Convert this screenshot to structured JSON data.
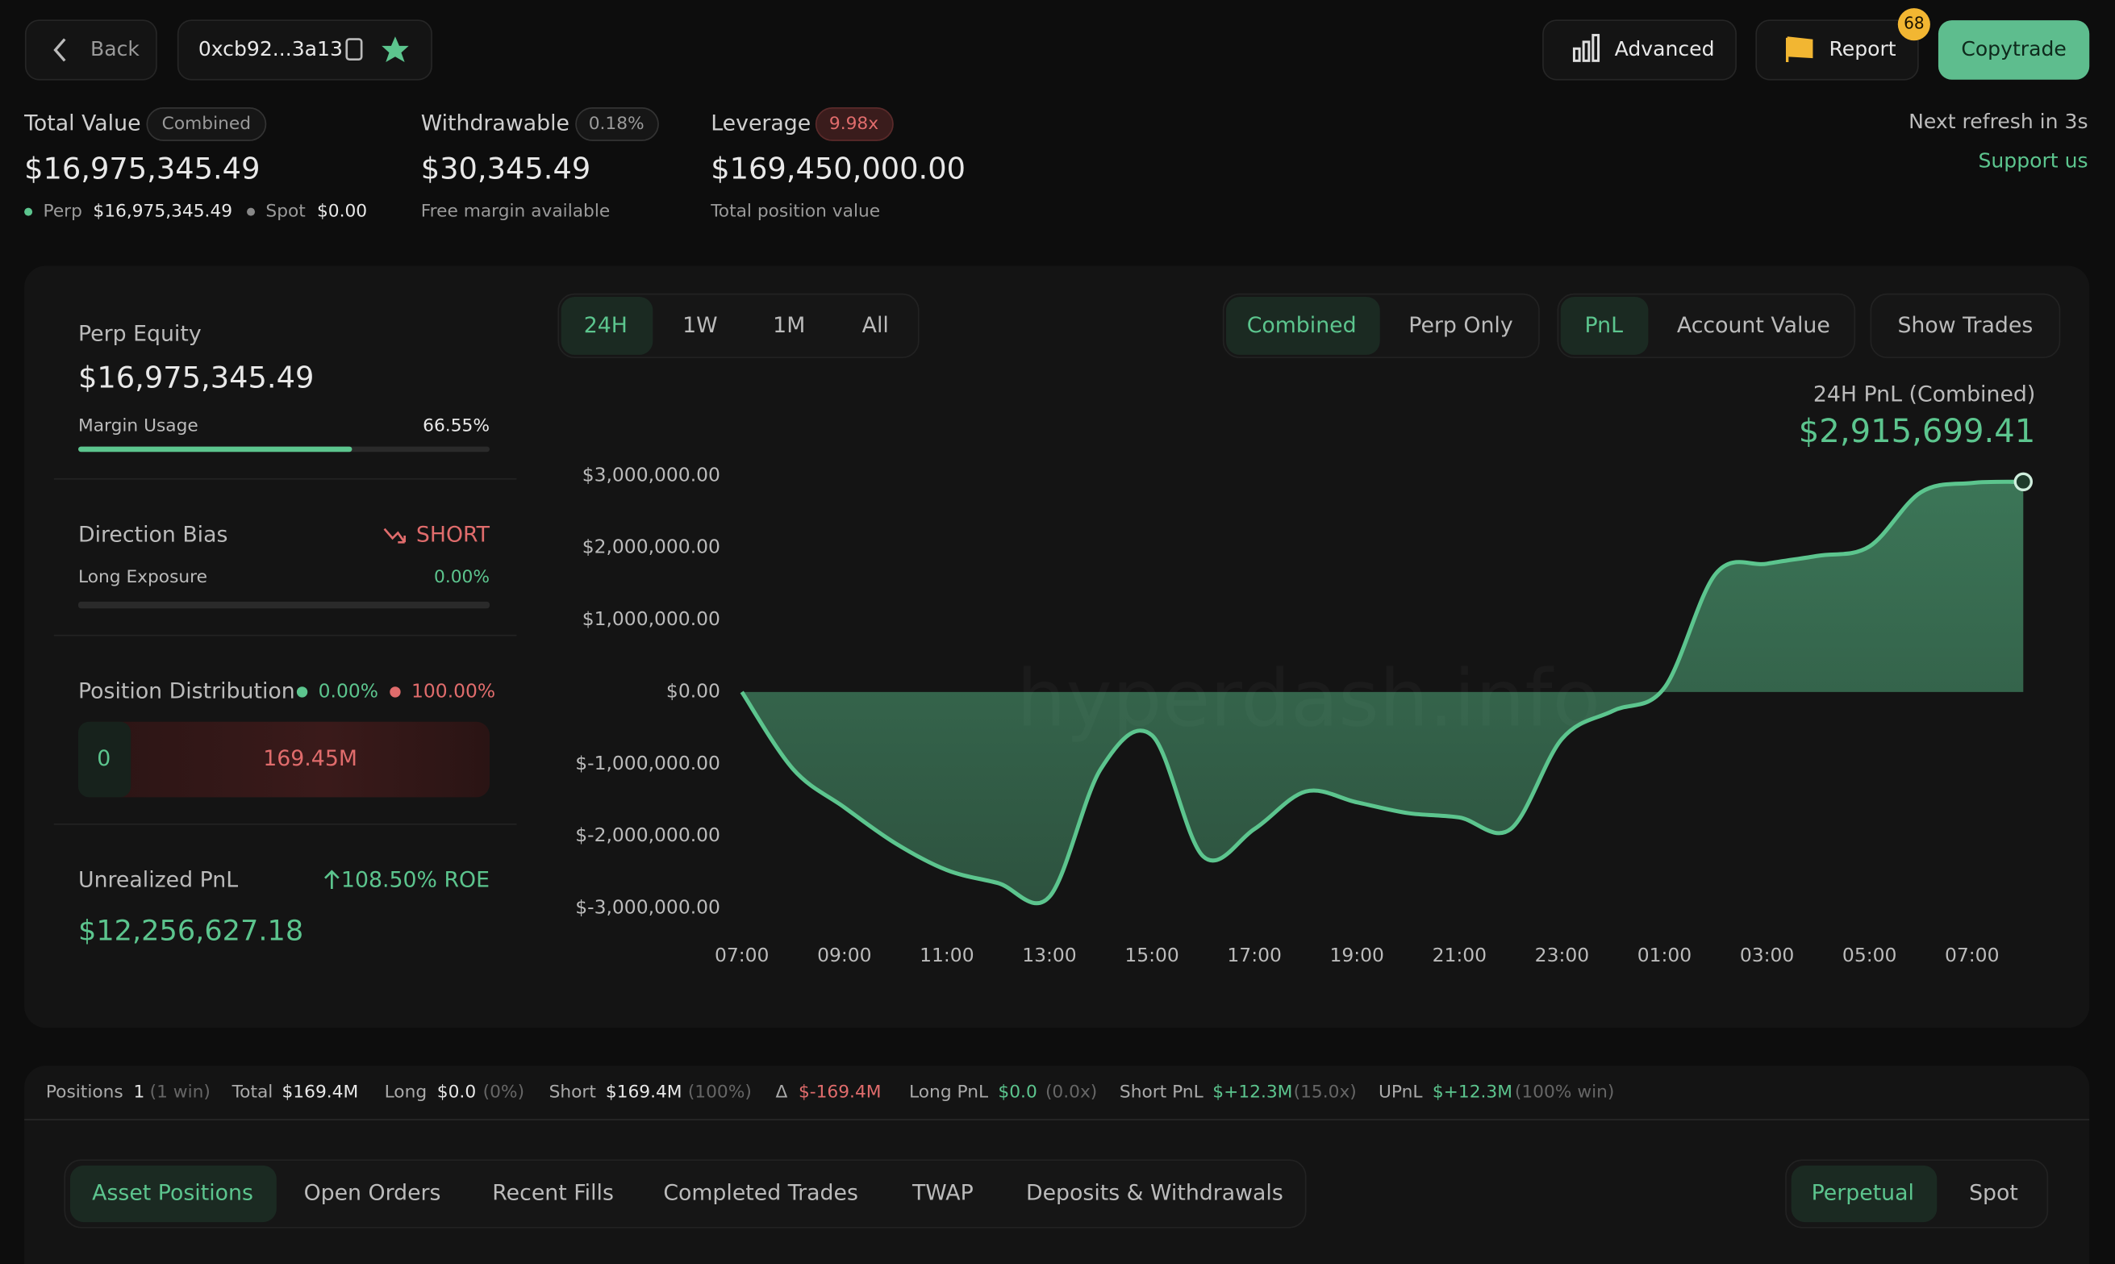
{
  "header": {
    "back": "Back",
    "address": "0xcb92...3a13",
    "advanced": "Advanced",
    "report": "Report",
    "report_badge": "68",
    "copytrade": "Copytrade"
  },
  "stats": {
    "total_value": {
      "label": "Total Value",
      "tag": "Combined",
      "value": "$16,975,345.49",
      "perp_label": "Perp",
      "perp_value": "$16,975,345.49",
      "spot_label": "Spot",
      "spot_value": "$0.00"
    },
    "withdrawable": {
      "label": "Withdrawable",
      "tag": "0.18%",
      "value": "$30,345.49",
      "note": "Free margin available"
    },
    "leverage": {
      "label": "Leverage",
      "tag": "9.98x",
      "value": "$169,450,000.00",
      "note": "Total position value"
    },
    "refresh": "Next refresh in 3s",
    "support": "Support us"
  },
  "sidebar": {
    "perp_equity": {
      "label": "Perp Equity",
      "value": "$16,975,345.49",
      "margin_label": "Margin Usage",
      "margin_value": "66.55%"
    },
    "direction": {
      "label": "Direction Bias",
      "value": "SHORT",
      "exposure_label": "Long Exposure",
      "exposure_value": "0.00%"
    },
    "distribution": {
      "label": "Position Distribution",
      "long": "0.00%",
      "short": "100.00%",
      "long_amount": "0",
      "short_amount": "169.45M"
    },
    "unrealized": {
      "label": "Unrealized PnL",
      "roe": "108.50% ROE",
      "value": "$12,256,627.18"
    }
  },
  "controls": {
    "ranges": [
      "24H",
      "1W",
      "1M",
      "All"
    ],
    "modes": [
      "Combined",
      "Perp Only"
    ],
    "metrics": [
      "PnL",
      "Account Value"
    ],
    "show_trades": "Show Trades"
  },
  "chart_data": {
    "type": "area",
    "title": "24H PnL (Combined)",
    "subtitle": "$2,915,699.41",
    "watermark": "hyperdash.info",
    "color": "#5cc58e",
    "categories": [
      "07:00",
      null,
      "09:00",
      null,
      "11:00",
      null,
      "13:00",
      null,
      "15:00",
      null,
      "17:00",
      null,
      "19:00",
      null,
      "21:00",
      null,
      "23:00",
      null,
      "01:00",
      null,
      "03:00",
      null,
      "05:00",
      null,
      "07:00",
      null
    ],
    "values": [
      0,
      -1070000,
      -1600000,
      -2100000,
      -2470000,
      -2650000,
      -2840000,
      -1070000,
      -600000,
      -2280000,
      -1900000,
      -1380000,
      -1530000,
      -1680000,
      -1740000,
      -1900000,
      -650000,
      -260000,
      60000,
      1640000,
      1780000,
      1890000,
      2020000,
      2770000,
      2900000,
      2915699.41
    ],
    "ylim": [
      -3000000,
      3000000
    ],
    "yticks": [
      {
        "value": 3000000,
        "label": "$3,000,000.00"
      },
      {
        "value": 2000000,
        "label": "$2,000,000.00"
      },
      {
        "value": 1000000,
        "label": "$1,000,000.00"
      },
      {
        "value": 0,
        "label": "$0.00"
      },
      {
        "value": -1000000,
        "label": "$-1,000,000.00"
      },
      {
        "value": -2000000,
        "label": "$-2,000,000.00"
      },
      {
        "value": -3000000,
        "label": "$-3,000,000.00"
      }
    ]
  },
  "summary": [
    {
      "label": "Positions",
      "value": "1",
      "note": "(1 win)"
    },
    {
      "label": "Total",
      "value": "$169.4M"
    },
    {
      "label": "Long",
      "value": "$0.0",
      "note": "(0%)"
    },
    {
      "label": "Short",
      "value": "$169.4M",
      "note": "(100%)"
    },
    {
      "label": "Δ",
      "value": "$-169.4M"
    },
    {
      "label": "Long PnL",
      "value": "$0.0",
      "note": "(0.0x)"
    },
    {
      "label": "Short PnL",
      "value": "$+12.3M",
      "note": "(15.0x)"
    },
    {
      "label": "UPnL",
      "value": "$+12.3M",
      "note": "(100% win)"
    }
  ],
  "tabs": [
    "Asset Positions",
    "Open Orders",
    "Recent Fills",
    "Completed Trades",
    "TWAP",
    "Deposits & Withdrawals"
  ],
  "market_tabs": [
    "Perpetual",
    "Spot"
  ]
}
